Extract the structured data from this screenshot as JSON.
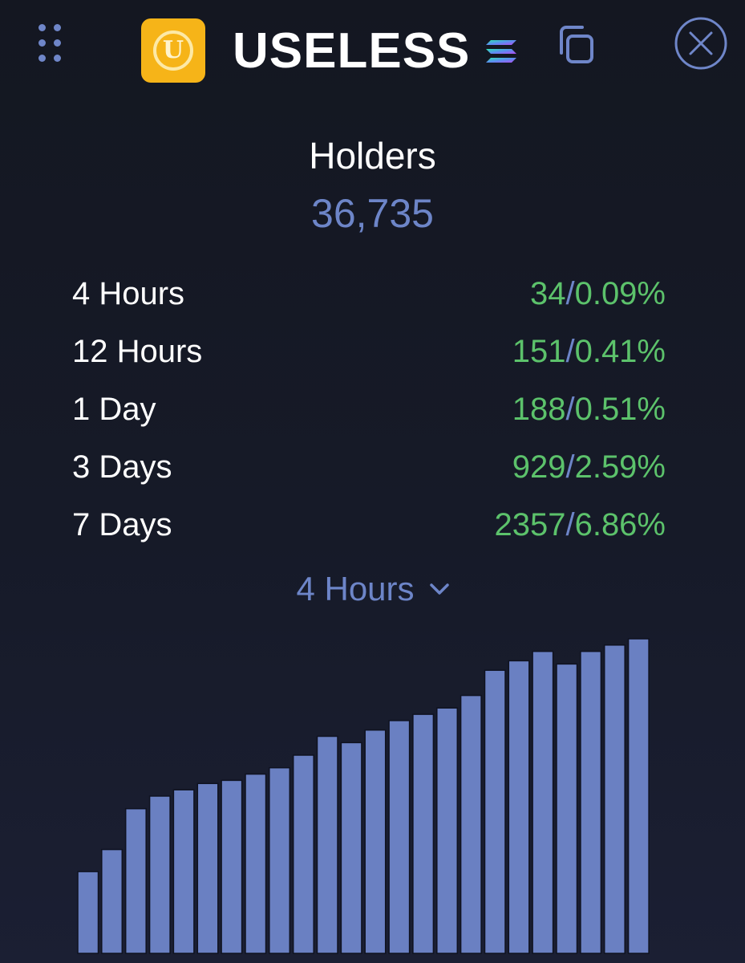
{
  "header": {
    "token_name": "USELESS",
    "logo_letter": "U",
    "icons": {
      "drag": "grid-dots-icon",
      "chain": "solana-icon",
      "copy": "copy-icon",
      "close": "close-icon"
    }
  },
  "holders": {
    "title": "Holders",
    "count": "36,735"
  },
  "stats": [
    {
      "label": "4 Hours",
      "count": "34",
      "percent": "0.09%"
    },
    {
      "label": "12 Hours",
      "count": "151",
      "percent": "0.41%"
    },
    {
      "label": "1 Day",
      "count": "188",
      "percent": "0.51%"
    },
    {
      "label": "3 Days",
      "count": "929",
      "percent": "2.59%"
    },
    {
      "label": "7 Days",
      "count": "2357",
      "percent": "6.86%"
    }
  ],
  "period_selector": {
    "selected": "4 Hours"
  },
  "colors": {
    "background": "#151925",
    "accent": "#6d85c8",
    "positive": "#5cc26b",
    "bar_fill": "#6a80c2",
    "logo": "#f6b418"
  },
  "chart_data": {
    "type": "bar",
    "values": [
      26,
      33,
      46,
      50,
      52,
      54,
      55,
      57,
      59,
      63,
      69,
      67,
      71,
      74,
      76,
      78,
      82,
      90,
      93,
      96,
      92,
      96,
      98,
      100
    ],
    "ylim": [
      0,
      100
    ],
    "grid": false,
    "legend": "none"
  }
}
